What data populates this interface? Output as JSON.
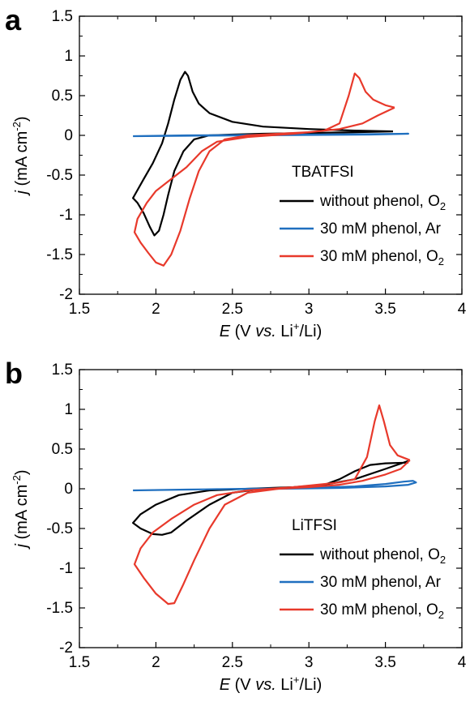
{
  "chart_data": [
    {
      "panel_label": "a",
      "type": "line",
      "xlabel": {
        "italic": "E",
        "main": " (V ",
        "italic2": "vs.",
        "rest": " Li",
        "sup": "+",
        "tail": "/Li)"
      },
      "ylabel": {
        "italic": "j",
        "main": " (mA cm",
        "sup": "-2",
        "tail": ")"
      },
      "xlim": [
        1.5,
        4
      ],
      "ylim": [
        -2,
        1.5
      ],
      "xticks": [
        "1.5",
        "2",
        "2.5",
        "3",
        "3.5",
        "4"
      ],
      "xtick_values": [
        1.5,
        2,
        2.5,
        3,
        3.5,
        4
      ],
      "yticks": [
        "-2",
        "-1.5",
        "-1",
        "-0.5",
        "0",
        "0.5",
        "1",
        "1.5"
      ],
      "ytick_values": [
        -2,
        -1.5,
        -1,
        -0.5,
        0,
        0.5,
        1,
        1.5
      ],
      "legend_title": "TBATFSI",
      "legend_position": "bottom-right",
      "series": [
        {
          "name": "without phenol, O",
          "name_sub": "2",
          "color": "#000000",
          "points": [
            [
              3.55,
              0.05
            ],
            [
              3.3,
              0.04
            ],
            [
              3.0,
              0.03
            ],
            [
              2.7,
              0.02
            ],
            [
              2.5,
              0.01
            ],
            [
              2.35,
              0.0
            ],
            [
              2.25,
              -0.05
            ],
            [
              2.18,
              -0.2
            ],
            [
              2.12,
              -0.45
            ],
            [
              2.08,
              -0.75
            ],
            [
              2.05,
              -1.0
            ],
            [
              2.02,
              -1.2
            ],
            [
              1.99,
              -1.26
            ],
            [
              1.96,
              -1.15
            ],
            [
              1.92,
              -0.98
            ],
            [
              1.88,
              -0.85
            ],
            [
              1.85,
              -0.79
            ],
            [
              1.87,
              -0.72
            ],
            [
              1.92,
              -0.55
            ],
            [
              1.98,
              -0.35
            ],
            [
              2.04,
              -0.1
            ],
            [
              2.08,
              0.15
            ],
            [
              2.12,
              0.45
            ],
            [
              2.16,
              0.7
            ],
            [
              2.19,
              0.8
            ],
            [
              2.21,
              0.75
            ],
            [
              2.24,
              0.55
            ],
            [
              2.28,
              0.4
            ],
            [
              2.35,
              0.28
            ],
            [
              2.5,
              0.17
            ],
            [
              2.7,
              0.11
            ],
            [
              3.0,
              0.08
            ],
            [
              3.3,
              0.06
            ],
            [
              3.55,
              0.05
            ]
          ]
        },
        {
          "name": "30 mM phenol, Ar",
          "color": "#1f6fbf",
          "points": [
            [
              1.85,
              -0.01
            ],
            [
              2.2,
              -0.005
            ],
            [
              2.6,
              0.0
            ],
            [
              3.0,
              0.005
            ],
            [
              3.4,
              0.01
            ],
            [
              3.65,
              0.02
            ],
            [
              3.4,
              0.015
            ],
            [
              3.0,
              0.01
            ],
            [
              2.6,
              0.005
            ],
            [
              2.2,
              0.0
            ],
            [
              1.85,
              -0.01
            ]
          ]
        },
        {
          "name": "30 mM phenol, O",
          "name_sub": "2",
          "color": "#e8392b",
          "points": [
            [
              3.56,
              0.35
            ],
            [
              3.45,
              0.25
            ],
            [
              3.35,
              0.15
            ],
            [
              3.2,
              0.08
            ],
            [
              3.0,
              0.04
            ],
            [
              2.8,
              0.02
            ],
            [
              2.6,
              0.0
            ],
            [
              2.45,
              -0.05
            ],
            [
              2.35,
              -0.2
            ],
            [
              2.28,
              -0.45
            ],
            [
              2.22,
              -0.8
            ],
            [
              2.16,
              -1.2
            ],
            [
              2.1,
              -1.5
            ],
            [
              2.05,
              -1.64
            ],
            [
              2.0,
              -1.6
            ],
            [
              1.95,
              -1.48
            ],
            [
              1.9,
              -1.35
            ],
            [
              1.86,
              -1.22
            ],
            [
              1.88,
              -1.05
            ],
            [
              1.94,
              -0.85
            ],
            [
              2.0,
              -0.7
            ],
            [
              2.1,
              -0.55
            ],
            [
              2.2,
              -0.4
            ],
            [
              2.3,
              -0.2
            ],
            [
              2.4,
              -0.08
            ],
            [
              2.6,
              -0.02
            ],
            [
              2.9,
              0.02
            ],
            [
              3.1,
              0.06
            ],
            [
              3.2,
              0.15
            ],
            [
              3.26,
              0.5
            ],
            [
              3.3,
              0.78
            ],
            [
              3.33,
              0.72
            ],
            [
              3.37,
              0.55
            ],
            [
              3.42,
              0.45
            ],
            [
              3.5,
              0.38
            ],
            [
              3.56,
              0.35
            ]
          ]
        }
      ]
    },
    {
      "panel_label": "b",
      "type": "line",
      "xlabel": {
        "italic": "E",
        "main": " (V ",
        "italic2": "vs.",
        "rest": " Li",
        "sup": "+",
        "tail": "/Li)"
      },
      "ylabel": {
        "italic": "j",
        "main": " (mA cm",
        "sup": "-2",
        "tail": ")"
      },
      "xlim": [
        1.5,
        4
      ],
      "ylim": [
        -2,
        1.5
      ],
      "xticks": [
        "1.5",
        "2",
        "2.5",
        "3",
        "3.5",
        "4"
      ],
      "xtick_values": [
        1.5,
        2,
        2.5,
        3,
        3.5,
        4
      ],
      "yticks": [
        "-2",
        "-1.5",
        "-1",
        "-0.5",
        "0",
        "0.5",
        "1",
        "1.5"
      ],
      "ytick_values": [
        -2,
        -1.5,
        -1,
        -0.5,
        0,
        0.5,
        1,
        1.5
      ],
      "legend_title": "LiTFSI",
      "legend_position": "bottom-right",
      "series": [
        {
          "name": "without phenol, O",
          "name_sub": "2",
          "color": "#000000",
          "points": [
            [
              3.65,
              0.35
            ],
            [
              3.5,
              0.25
            ],
            [
              3.3,
              0.12
            ],
            [
              3.1,
              0.05
            ],
            [
              2.9,
              0.02
            ],
            [
              2.7,
              0.0
            ],
            [
              2.5,
              -0.05
            ],
            [
              2.35,
              -0.2
            ],
            [
              2.2,
              -0.4
            ],
            [
              2.1,
              -0.55
            ],
            [
              2.04,
              -0.58
            ],
            [
              1.98,
              -0.57
            ],
            [
              1.9,
              -0.5
            ],
            [
              1.85,
              -0.43
            ],
            [
              1.9,
              -0.32
            ],
            [
              2.0,
              -0.2
            ],
            [
              2.15,
              -0.08
            ],
            [
              2.35,
              -0.02
            ],
            [
              2.6,
              0.0
            ],
            [
              2.9,
              0.02
            ],
            [
              3.1,
              0.05
            ],
            [
              3.2,
              0.12
            ],
            [
              3.3,
              0.22
            ],
            [
              3.4,
              0.3
            ],
            [
              3.5,
              0.32
            ],
            [
              3.65,
              0.33
            ]
          ]
        },
        {
          "name": "30 mM phenol, Ar",
          "color": "#1f6fbf",
          "points": [
            [
              1.85,
              -0.02
            ],
            [
              2.2,
              -0.01
            ],
            [
              2.6,
              0.0
            ],
            [
              3.0,
              0.01
            ],
            [
              3.3,
              0.03
            ],
            [
              3.5,
              0.06
            ],
            [
              3.62,
              0.09
            ],
            [
              3.68,
              0.1
            ],
            [
              3.7,
              0.08
            ],
            [
              3.65,
              0.05
            ],
            [
              3.5,
              0.03
            ],
            [
              3.2,
              0.01
            ],
            [
              2.8,
              0.0
            ],
            [
              2.4,
              -0.005
            ],
            [
              1.85,
              -0.02
            ]
          ]
        },
        {
          "name": "30 mM phenol, O",
          "name_sub": "2",
          "color": "#e8392b",
          "points": [
            [
              3.66,
              0.36
            ],
            [
              3.6,
              0.25
            ],
            [
              3.5,
              0.18
            ],
            [
              3.35,
              0.1
            ],
            [
              3.2,
              0.05
            ],
            [
              3.0,
              0.02
            ],
            [
              2.8,
              0.0
            ],
            [
              2.6,
              -0.05
            ],
            [
              2.45,
              -0.2
            ],
            [
              2.35,
              -0.5
            ],
            [
              2.25,
              -0.9
            ],
            [
              2.18,
              -1.2
            ],
            [
              2.12,
              -1.44
            ],
            [
              2.08,
              -1.45
            ],
            [
              2.0,
              -1.32
            ],
            [
              1.92,
              -1.12
            ],
            [
              1.86,
              -0.95
            ],
            [
              1.9,
              -0.75
            ],
            [
              1.98,
              -0.55
            ],
            [
              2.1,
              -0.38
            ],
            [
              2.25,
              -0.2
            ],
            [
              2.4,
              -0.08
            ],
            [
              2.6,
              -0.02
            ],
            [
              2.9,
              0.02
            ],
            [
              3.2,
              0.08
            ],
            [
              3.3,
              0.12
            ],
            [
              3.38,
              0.4
            ],
            [
              3.43,
              0.85
            ],
            [
              3.46,
              1.05
            ],
            [
              3.49,
              0.85
            ],
            [
              3.53,
              0.55
            ],
            [
              3.58,
              0.42
            ],
            [
              3.66,
              0.36
            ]
          ]
        }
      ]
    }
  ]
}
